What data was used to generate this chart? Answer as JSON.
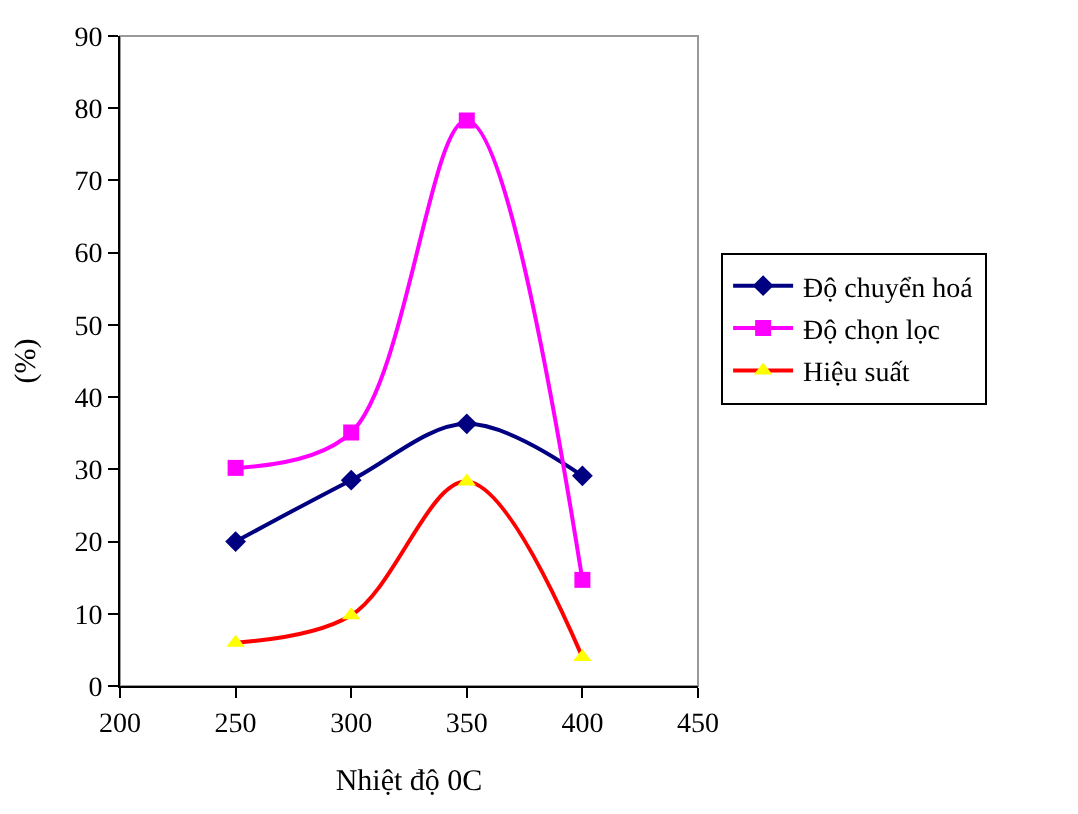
{
  "chart_data": {
    "type": "line",
    "xlabel": "Nhiệt độ 0C",
    "ylabel": "(%)",
    "x": [
      250,
      300,
      350,
      400
    ],
    "xlim": [
      200,
      450
    ],
    "xticks": [
      200,
      250,
      300,
      350,
      400,
      450
    ],
    "ylim": [
      0,
      90
    ],
    "yticks": [
      0,
      10,
      20,
      30,
      40,
      50,
      60,
      70,
      80,
      90
    ],
    "grid": false,
    "legend": "right",
    "line_style": "solid",
    "series": [
      {
        "name": "Độ chuyển hoá",
        "color": "#000080",
        "marker": "diamond",
        "values": [
          20,
          28.5,
          36.3,
          29.1
        ]
      },
      {
        "name": "Độ chọn lọc",
        "color": "#ff00ff",
        "marker": "square",
        "values": [
          30.2,
          35.1,
          78.3,
          14.7
        ]
      },
      {
        "name": "Hiệu suất",
        "color": "#ff0000",
        "colors": [
          "#ffff00",
          "#ffff00",
          "#ffff00",
          "#ffff00"
        ],
        "marker": "triangle",
        "values": [
          6,
          9.8,
          28.3,
          4
        ]
      }
    ]
  }
}
